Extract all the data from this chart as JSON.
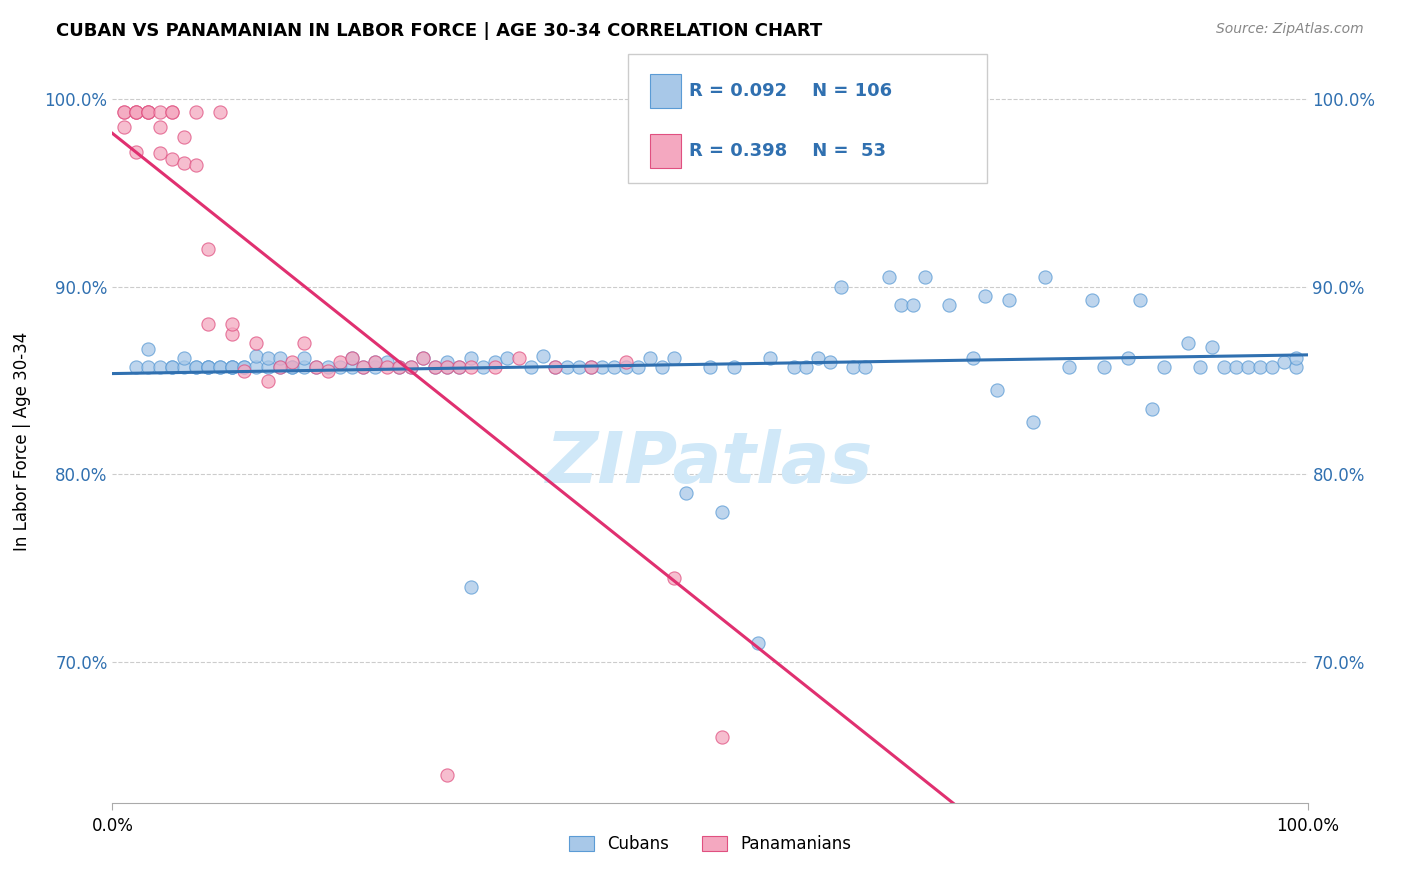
{
  "title": "CUBAN VS PANAMANIAN IN LABOR FORCE | AGE 30-34 CORRELATION CHART",
  "source_text": "Source: ZipAtlas.com",
  "ylabel": "In Labor Force | Age 30-34",
  "legend_label1": "Cubans",
  "legend_label2": "Panamanians",
  "blue_color": "#a8c8e8",
  "blue_edge_color": "#5b9bd5",
  "pink_color": "#f4a8c0",
  "pink_edge_color": "#e05080",
  "blue_line_color": "#3070b0",
  "pink_line_color": "#e03070",
  "legend_text_color": "#3070b0",
  "watermark_color": "#d0e8f8",
  "R_blue": 0.092,
  "N_blue": 106,
  "R_pink": 0.398,
  "N_pink": 53,
  "blue_x": [
    0.02,
    0.03,
    0.03,
    0.04,
    0.05,
    0.05,
    0.06,
    0.06,
    0.07,
    0.07,
    0.08,
    0.08,
    0.08,
    0.09,
    0.09,
    0.1,
    0.1,
    0.1,
    0.11,
    0.11,
    0.12,
    0.12,
    0.13,
    0.13,
    0.14,
    0.14,
    0.15,
    0.15,
    0.16,
    0.16,
    0.17,
    0.18,
    0.19,
    0.2,
    0.2,
    0.21,
    0.22,
    0.22,
    0.23,
    0.24,
    0.25,
    0.26,
    0.27,
    0.28,
    0.28,
    0.29,
    0.3,
    0.31,
    0.32,
    0.33,
    0.35,
    0.36,
    0.37,
    0.38,
    0.39,
    0.4,
    0.41,
    0.42,
    0.43,
    0.44,
    0.45,
    0.46,
    0.47,
    0.5,
    0.52,
    0.55,
    0.57,
    0.58,
    0.59,
    0.61,
    0.62,
    0.63,
    0.65,
    0.66,
    0.67,
    0.68,
    0.7,
    0.72,
    0.73,
    0.75,
    0.78,
    0.8,
    0.82,
    0.83,
    0.85,
    0.86,
    0.88,
    0.9,
    0.91,
    0.92,
    0.93,
    0.94,
    0.95,
    0.96,
    0.97,
    0.98,
    0.99,
    0.99,
    0.3,
    0.48,
    0.51,
    0.54,
    0.6,
    0.74,
    0.77,
    0.87
  ],
  "blue_y": [
    0.857,
    0.857,
    0.867,
    0.857,
    0.857,
    0.857,
    0.857,
    0.862,
    0.857,
    0.857,
    0.857,
    0.857,
    0.857,
    0.857,
    0.857,
    0.857,
    0.857,
    0.857,
    0.857,
    0.857,
    0.857,
    0.863,
    0.857,
    0.862,
    0.857,
    0.862,
    0.857,
    0.857,
    0.857,
    0.862,
    0.857,
    0.857,
    0.857,
    0.857,
    0.862,
    0.857,
    0.857,
    0.86,
    0.86,
    0.857,
    0.857,
    0.862,
    0.857,
    0.857,
    0.86,
    0.857,
    0.862,
    0.857,
    0.86,
    0.862,
    0.857,
    0.863,
    0.857,
    0.857,
    0.857,
    0.857,
    0.857,
    0.857,
    0.857,
    0.857,
    0.862,
    0.857,
    0.862,
    0.857,
    0.857,
    0.862,
    0.857,
    0.857,
    0.862,
    0.9,
    0.857,
    0.857,
    0.905,
    0.89,
    0.89,
    0.905,
    0.89,
    0.862,
    0.895,
    0.893,
    0.905,
    0.857,
    0.893,
    0.857,
    0.862,
    0.893,
    0.857,
    0.87,
    0.857,
    0.868,
    0.857,
    0.857,
    0.857,
    0.857,
    0.857,
    0.86,
    0.857,
    0.862,
    0.74,
    0.79,
    0.78,
    0.71,
    0.86,
    0.845,
    0.828,
    0.835
  ],
  "pink_x": [
    0.01,
    0.01,
    0.01,
    0.02,
    0.02,
    0.02,
    0.02,
    0.03,
    0.03,
    0.03,
    0.04,
    0.04,
    0.04,
    0.05,
    0.05,
    0.05,
    0.06,
    0.06,
    0.07,
    0.07,
    0.08,
    0.08,
    0.09,
    0.1,
    0.1,
    0.11,
    0.12,
    0.13,
    0.14,
    0.15,
    0.16,
    0.17,
    0.18,
    0.19,
    0.2,
    0.21,
    0.22,
    0.23,
    0.24,
    0.25,
    0.26,
    0.27,
    0.28,
    0.29,
    0.3,
    0.32,
    0.34,
    0.37,
    0.4,
    0.43,
    0.47,
    0.51,
    0.28
  ],
  "pink_y": [
    0.993,
    0.993,
    0.985,
    0.993,
    0.993,
    0.993,
    0.972,
    0.993,
    0.993,
    0.993,
    0.993,
    0.985,
    0.971,
    0.993,
    0.993,
    0.968,
    0.966,
    0.98,
    0.993,
    0.965,
    0.92,
    0.88,
    0.993,
    0.875,
    0.88,
    0.855,
    0.87,
    0.85,
    0.857,
    0.86,
    0.87,
    0.857,
    0.855,
    0.86,
    0.862,
    0.857,
    0.86,
    0.857,
    0.857,
    0.857,
    0.862,
    0.857,
    0.857,
    0.857,
    0.857,
    0.857,
    0.862,
    0.857,
    0.857,
    0.86,
    0.745,
    0.66,
    0.64
  ],
  "xlim": [
    0,
    1.0
  ],
  "ylim": [
    0.625,
    1.01
  ],
  "x_ticks": [
    0.0,
    1.0
  ],
  "x_tick_labels": [
    "0.0%",
    "100.0%"
  ],
  "y_ticks": [
    0.7,
    0.8,
    0.9,
    1.0
  ],
  "y_tick_labels": [
    "70.0%",
    "80.0%",
    "90.0%",
    "100.0%"
  ]
}
